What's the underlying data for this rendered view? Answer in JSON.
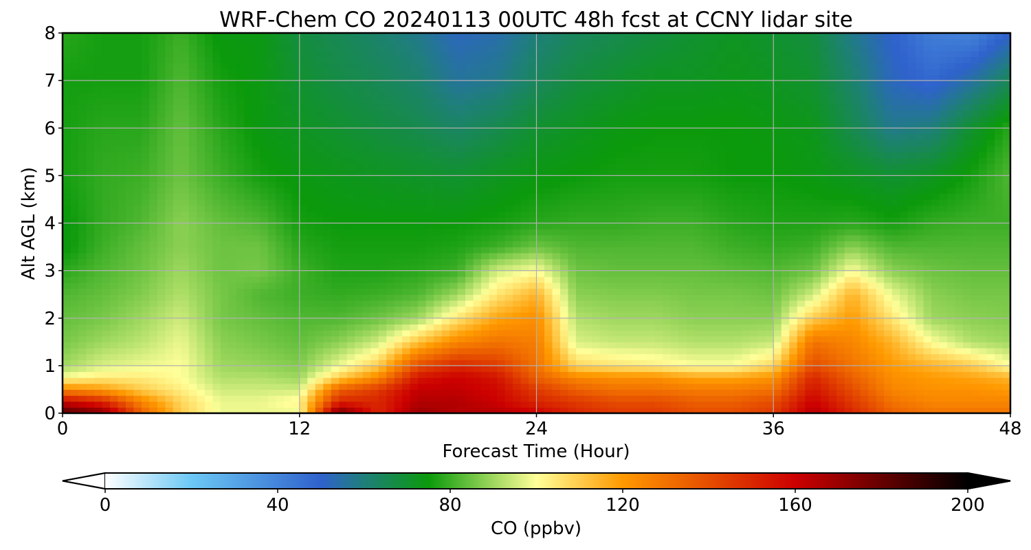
{
  "chart_data": {
    "type": "heatmap",
    "title": "WRF-Chem CO  20240113 00UTC 48h fcst at CCNY lidar site",
    "xlabel": "Forecast Time (Hour)",
    "ylabel": "Alt AGL (km)",
    "xlim": [
      0,
      48
    ],
    "ylim": [
      0,
      8
    ],
    "x_ticks": [
      0,
      12,
      24,
      36,
      48
    ],
    "y_ticks": [
      0,
      1,
      2,
      3,
      4,
      5,
      6,
      7,
      8
    ],
    "grid": true,
    "colorbar": {
      "label": "CO  (ppbv)",
      "min": 0,
      "max": 200,
      "ticks": [
        0,
        40,
        80,
        120,
        160,
        200
      ],
      "extend": "both",
      "orientation": "horizontal",
      "placement": "bottom",
      "colors": {
        "0": "#ffffff",
        "20": "#6cc8f5",
        "50": "#2f62cc",
        "60": "#1f7f7a",
        "75": "#0b9a0b",
        "90": "#9fd85e",
        "100": "#ffff99",
        "120": "#ff9900",
        "160": "#cc0000",
        "200": "#000000"
      }
    },
    "x": [
      0,
      2,
      4,
      6,
      8,
      10,
      12,
      14,
      16,
      18,
      20,
      22,
      24,
      26,
      28,
      30,
      32,
      34,
      36,
      38,
      40,
      42,
      44,
      46,
      48
    ],
    "y": [
      0,
      0.25,
      0.5,
      0.75,
      1,
      1.5,
      2,
      2.5,
      3,
      3.5,
      4,
      5,
      6,
      7,
      8
    ],
    "z": [
      [
        185,
        175,
        135,
        110,
        98,
        98,
        98,
        180,
        150,
        170,
        165,
        165,
        160,
        150,
        145,
        145,
        140,
        140,
        145,
        165,
        150,
        135,
        130,
        130,
        130
      ],
      [
        160,
        150,
        125,
        108,
        98,
        98,
        102,
        150,
        150,
        165,
        165,
        160,
        150,
        145,
        140,
        140,
        135,
        135,
        140,
        160,
        145,
        130,
        125,
        125,
        125
      ],
      [
        125,
        120,
        110,
        103,
        95,
        95,
        95,
        135,
        145,
        162,
        162,
        158,
        145,
        135,
        130,
        130,
        128,
        128,
        130,
        155,
        140,
        125,
        122,
        122,
        120
      ],
      [
        100,
        104,
        104,
        100,
        92,
        92,
        90,
        110,
        125,
        155,
        160,
        155,
        135,
        125,
        123,
        123,
        118,
        118,
        122,
        150,
        135,
        123,
        120,
        118,
        115
      ],
      [
        90,
        96,
        98,
        100,
        90,
        89,
        87,
        98,
        110,
        140,
        150,
        145,
        130,
        108,
        105,
        103,
        100,
        100,
        108,
        140,
        130,
        120,
        115,
        110,
        100
      ],
      [
        86,
        90,
        93,
        98,
        88,
        86,
        84,
        88,
        95,
        112,
        125,
        130,
        127,
        96,
        94,
        94,
        92,
        92,
        94,
        130,
        125,
        115,
        100,
        92,
        90
      ],
      [
        84,
        86,
        90,
        95,
        86,
        84,
        82,
        82,
        85,
        90,
        105,
        118,
        123,
        92,
        90,
        90,
        88,
        88,
        88,
        110,
        120,
        105,
        90,
        88,
        87
      ],
      [
        82,
        84,
        87,
        92,
        86,
        82,
        80,
        79,
        80,
        82,
        90,
        105,
        115,
        88,
        87,
        87,
        86,
        86,
        85,
        95,
        115,
        98,
        88,
        86,
        86
      ],
      [
        78,
        82,
        85,
        90,
        85,
        86,
        80,
        77,
        77,
        78,
        80,
        95,
        100,
        85,
        84,
        84,
        84,
        83,
        82,
        85,
        100,
        88,
        85,
        84,
        84
      ],
      [
        74,
        80,
        84,
        88,
        85,
        85,
        78,
        76,
        76,
        76,
        77,
        80,
        85,
        82,
        82,
        82,
        82,
        80,
        79,
        80,
        88,
        82,
        82,
        82,
        82
      ],
      [
        74,
        79,
        82,
        88,
        84,
        82,
        76,
        75,
        75,
        75,
        75,
        76,
        78,
        79,
        79,
        80,
        80,
        78,
        77,
        77,
        78,
        76,
        79,
        80,
        80
      ],
      [
        76,
        79,
        80,
        85,
        80,
        76,
        74,
        73,
        72,
        71,
        70,
        72,
        74,
        75,
        76,
        76,
        76,
        75,
        75,
        74,
        72,
        70,
        72,
        76,
        82
      ],
      [
        76,
        78,
        78,
        84,
        78,
        74,
        72,
        70,
        68,
        66,
        63,
        66,
        70,
        72,
        74,
        75,
        75,
        75,
        74,
        73,
        66,
        58,
        60,
        70,
        78
      ],
      [
        76,
        76,
        76,
        82,
        76,
        74,
        70,
        67,
        65,
        62,
        56,
        58,
        64,
        68,
        70,
        72,
        72,
        73,
        72,
        70,
        62,
        52,
        48,
        55,
        65
      ],
      [
        78,
        76,
        76,
        80,
        74,
        74,
        68,
        65,
        62,
        58,
        52,
        54,
        60,
        64,
        66,
        68,
        70,
        72,
        70,
        68,
        58,
        50,
        42,
        40,
        50
      ]
    ]
  }
}
